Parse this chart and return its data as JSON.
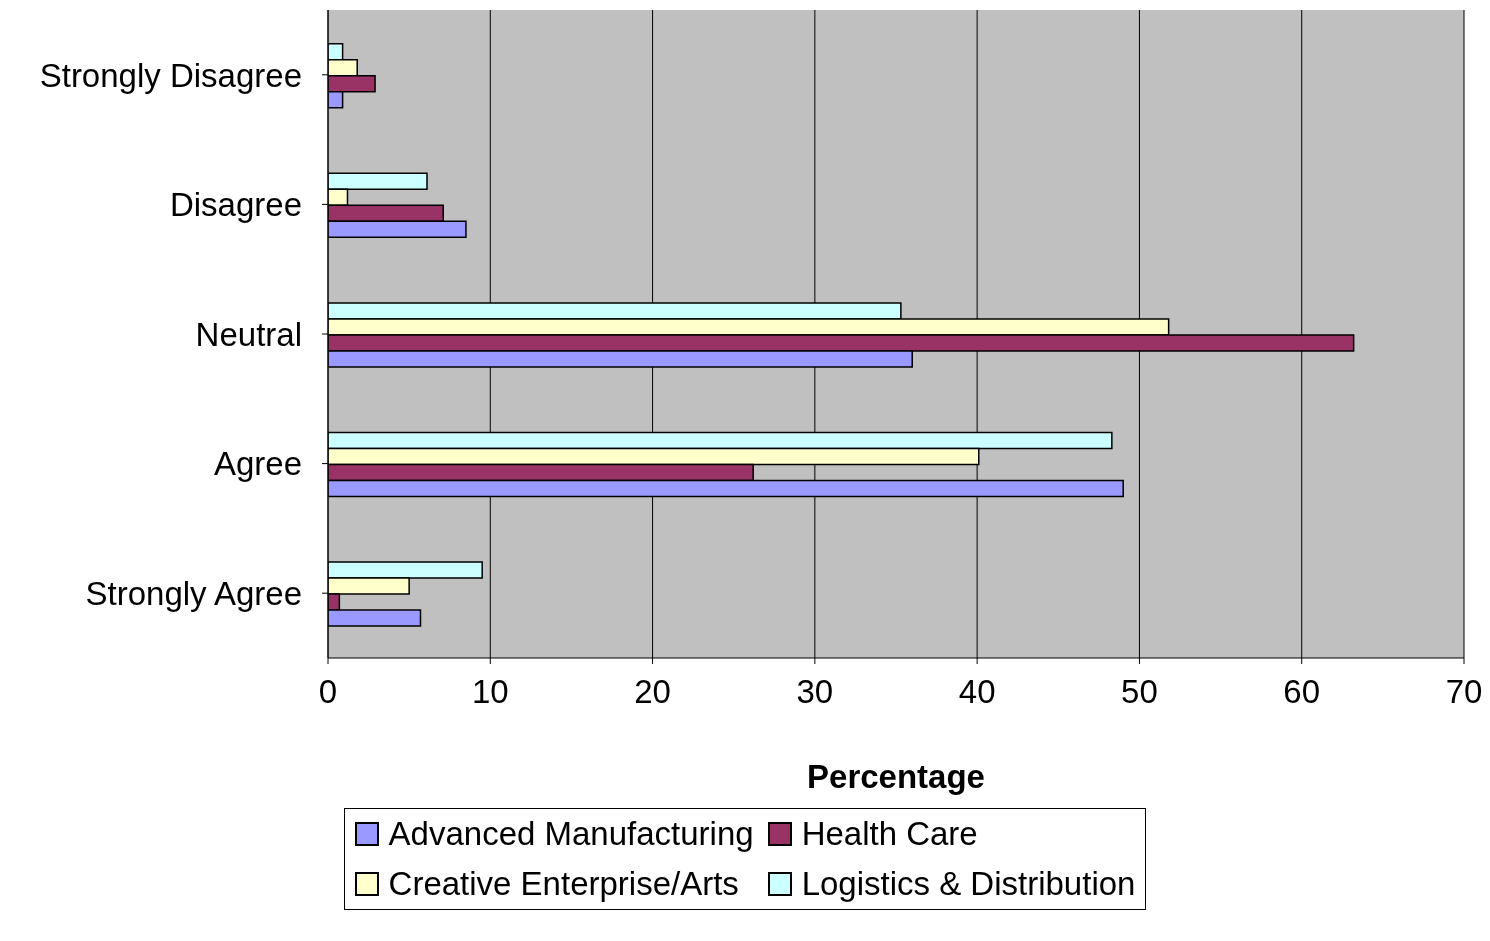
{
  "chart_data": {
    "type": "bar",
    "orientation": "horizontal",
    "xlabel": "Percentage",
    "categories": [
      "Strongly Disagree",
      "Disagree",
      "Neutral",
      "Agree",
      "Strongly Agree"
    ],
    "series": [
      {
        "name": "Advanced Manufacturing",
        "color": "#9999ff",
        "values": [
          0.9,
          8.5,
          36.0,
          49.0,
          5.7
        ]
      },
      {
        "name": "Health Care",
        "color": "#993366",
        "values": [
          2.9,
          7.1,
          63.2,
          26.2,
          0.7
        ]
      },
      {
        "name": "Creative Enterprise/Arts",
        "color": "#ffffcc",
        "values": [
          1.8,
          1.2,
          51.8,
          40.1,
          5.0
        ]
      },
      {
        "name": "Logistics & Distribution",
        "color": "#ccffff",
        "values": [
          0.9,
          6.1,
          35.3,
          48.3,
          9.5
        ]
      }
    ],
    "xlim": [
      0,
      70
    ],
    "xticks": [
      0,
      10,
      20,
      30,
      40,
      50,
      60,
      70
    ],
    "grid": "x",
    "legend": "bottom"
  }
}
